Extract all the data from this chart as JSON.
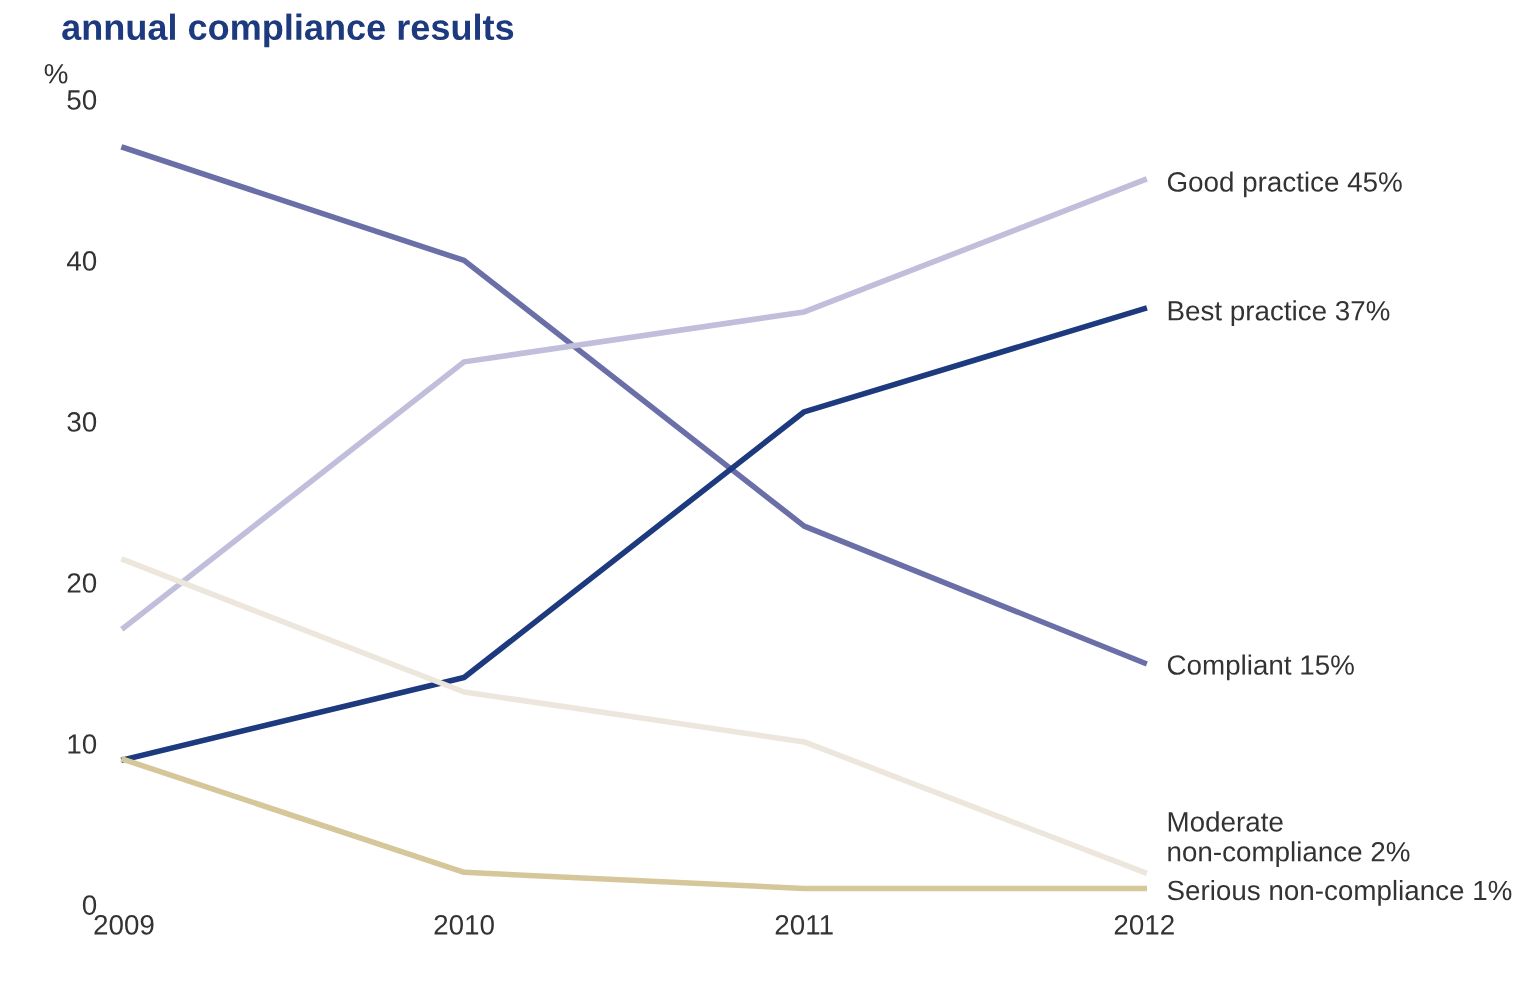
{
  "chart_data": {
    "type": "line",
    "title": "annual compliance results",
    "ylabel": "%",
    "categories": [
      "2009",
      "2010",
      "2011",
      "2012"
    ],
    "series": [
      {
        "name": "Compliant 15%",
        "color": "#6b6fa8",
        "values": [
          47,
          40,
          23.5,
          15
        ]
      },
      {
        "name": "Good practice 45%",
        "color": "#c0bedb",
        "values": [
          17.2,
          33.7,
          36.8,
          45
        ]
      },
      {
        "name": "Best practice 37%",
        "color": "#1d3a7e",
        "values": [
          9,
          14.1,
          30.6,
          37
        ]
      },
      {
        "name": "Moderate\nnon-compliance 2%",
        "color": "#ece6dc",
        "values": [
          21.4,
          13.2,
          10.1,
          2
        ]
      },
      {
        "name": "Serious non-compliance 1%",
        "color": "#d6c79b",
        "values": [
          9,
          2,
          1,
          1
        ]
      }
    ],
    "ylim": [
      0,
      50
    ],
    "yticks": [
      0,
      10,
      20,
      30,
      40,
      50
    ],
    "grid": false,
    "legend": false
  }
}
